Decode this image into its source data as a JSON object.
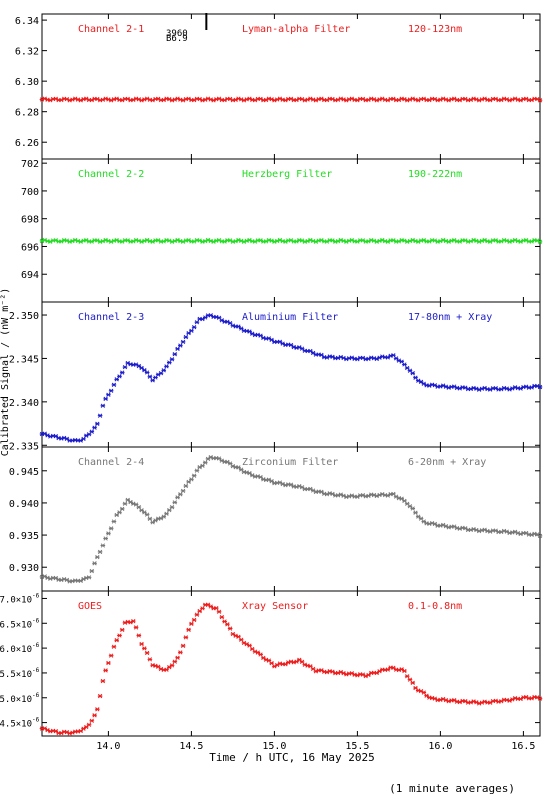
{
  "colors": {
    "frame": "#000000",
    "red": "#ee1c1c",
    "green": "#22dd22",
    "blue": "#1c1ccc",
    "gray": "#777777"
  },
  "xaxis": {
    "label": "Time / h UTC, 16 May 2025",
    "range": [
      13.6,
      16.6
    ],
    "ticks": [
      14.0,
      14.5,
      15.0,
      15.5,
      16.0,
      16.5
    ],
    "tick_labels": [
      "14.0",
      "14.5",
      "15.0",
      "15.5",
      "16.0",
      "16.5"
    ]
  },
  "ylabel": "Calibrated Signal / (nW m⁻²)",
  "footnote": "(1 minute averages)",
  "chart_data": [
    {
      "type": "scatter",
      "color_key": "red",
      "labels": [
        "Channel 2-1",
        "Lyman-alpha Filter",
        "120-123nm"
      ],
      "ylim": [
        6.249,
        6.344
      ],
      "y_ticks": [
        6.26,
        6.28,
        6.3,
        6.32,
        6.34
      ],
      "y_tick_labels": [
        "6.26",
        "6.28",
        "6.30",
        "6.32",
        "6.34"
      ],
      "annotations": [
        "3960",
        "B6.9"
      ],
      "marker_time": 14.59,
      "series": [
        {
          "x": [
            13.6,
            14.0,
            14.5,
            15.0,
            15.5,
            16.0,
            16.6
          ],
          "y": [
            6.288,
            6.288,
            6.288,
            6.288,
            6.288,
            6.288,
            6.288
          ]
        }
      ]
    },
    {
      "type": "scatter",
      "color_key": "green",
      "labels": [
        "Channel 2-2",
        "Herzberg Filter",
        "190-222nm"
      ],
      "ylim": [
        692.0,
        702.3
      ],
      "y_ticks": [
        694,
        696,
        698,
        700,
        702
      ],
      "y_tick_labels": [
        "694",
        "696",
        "698",
        "700",
        "702"
      ],
      "series": [
        {
          "x": [
            13.6,
            14.0,
            14.5,
            15.0,
            15.5,
            16.0,
            16.6
          ],
          "y": [
            696.4,
            696.4,
            696.4,
            696.4,
            696.4,
            696.4,
            696.4
          ]
        }
      ]
    },
    {
      "type": "scatter",
      "color_key": "blue",
      "labels": [
        "Channel 2-3",
        "Aluminium Filter",
        "17-80nm + Xray"
      ],
      "ylim": [
        2.3348,
        2.3515
      ],
      "y_ticks": [
        2.335,
        2.34,
        2.345,
        2.35
      ],
      "y_tick_labels": [
        "2.335",
        "2.340",
        "2.345",
        "2.350"
      ],
      "series": [
        {
          "x": [
            13.6,
            13.8,
            13.85,
            13.93,
            13.97,
            14.05,
            14.12,
            14.2,
            14.27,
            14.35,
            14.45,
            14.55,
            14.62,
            14.7,
            14.85,
            15.0,
            15.15,
            15.3,
            15.45,
            15.6,
            15.72,
            15.8,
            15.85,
            15.9,
            16.0,
            16.2,
            16.4,
            16.6
          ],
          "y": [
            2.3363,
            2.3355,
            2.3357,
            2.3372,
            2.3398,
            2.3425,
            2.3445,
            2.344,
            2.3425,
            2.344,
            2.347,
            2.3495,
            2.35,
            2.3493,
            2.348,
            2.347,
            2.3462,
            2.3452,
            2.345,
            2.345,
            2.3453,
            2.344,
            2.3428,
            2.342,
            2.3418,
            2.3415,
            2.3415,
            2.3418
          ]
        }
      ]
    },
    {
      "type": "scatter",
      "color_key": "gray",
      "labels": [
        "Channel 2-4",
        "Zirconium Filter",
        "6-20nm + Xray"
      ],
      "ylim": [
        0.9263,
        0.9487
      ],
      "y_ticks": [
        0.93,
        0.935,
        0.94,
        0.945
      ],
      "y_tick_labels": [
        "0.930",
        "0.935",
        "0.940",
        "0.945"
      ],
      "series": [
        {
          "x": [
            13.6,
            13.8,
            13.88,
            13.95,
            14.05,
            14.12,
            14.2,
            14.27,
            14.35,
            14.45,
            14.55,
            14.62,
            14.7,
            14.85,
            15.0,
            15.15,
            15.3,
            15.45,
            15.6,
            15.72,
            15.8,
            15.85,
            15.9,
            16.0,
            16.2,
            16.4,
            16.6
          ],
          "y": [
            0.9285,
            0.9278,
            0.9283,
            0.9325,
            0.938,
            0.9405,
            0.939,
            0.937,
            0.9382,
            0.942,
            0.9455,
            0.9472,
            0.9465,
            0.9445,
            0.9432,
            0.9425,
            0.9415,
            0.941,
            0.9412,
            0.9413,
            0.94,
            0.9385,
            0.937,
            0.9365,
            0.9358,
            0.9355,
            0.935
          ]
        }
      ]
    },
    {
      "type": "scatter",
      "color_key": "red",
      "labels": [
        "GOES",
        "Xray Sensor",
        "0.1-0.8nm"
      ],
      "ylim": [
        4.23e-06,
        7.15e-06
      ],
      "y_ticks": [
        4.5e-06,
        5e-06,
        5.5e-06,
        6e-06,
        6.5e-06,
        7e-06
      ],
      "y_tick_mantissa": [
        "4.5",
        "5.0",
        "5.5",
        "6.0",
        "6.5",
        "7.0"
      ],
      "y_tick_exponent": "-6",
      "series": [
        {
          "x": [
            13.6,
            13.7,
            13.8,
            13.87,
            13.93,
            13.97,
            14.03,
            14.1,
            14.15,
            14.2,
            14.27,
            14.35,
            14.42,
            14.5,
            14.58,
            14.65,
            14.75,
            14.9,
            15.0,
            15.08,
            15.15,
            15.25,
            15.4,
            15.55,
            15.7,
            15.78,
            15.85,
            15.95,
            16.1,
            16.25,
            16.4,
            16.5,
            16.6
          ],
          "y": [
            4.38e-06,
            4.3e-06,
            4.3e-06,
            4.4e-06,
            4.7e-06,
            5.4e-06,
            6e-06,
            6.5e-06,
            6.55e-06,
            6.1e-06,
            5.65e-06,
            5.55e-06,
            5.8e-06,
            6.5e-06,
            6.88e-06,
            6.8e-06,
            6.3e-06,
            5.9e-06,
            5.65e-06,
            5.7e-06,
            5.75e-06,
            5.55e-06,
            5.5e-06,
            5.45e-06,
            5.6e-06,
            5.55e-06,
            5.2e-06,
            4.98e-06,
            4.93e-06,
            4.9e-06,
            4.95e-06,
            5e-06,
            5e-06
          ]
        }
      ]
    }
  ]
}
